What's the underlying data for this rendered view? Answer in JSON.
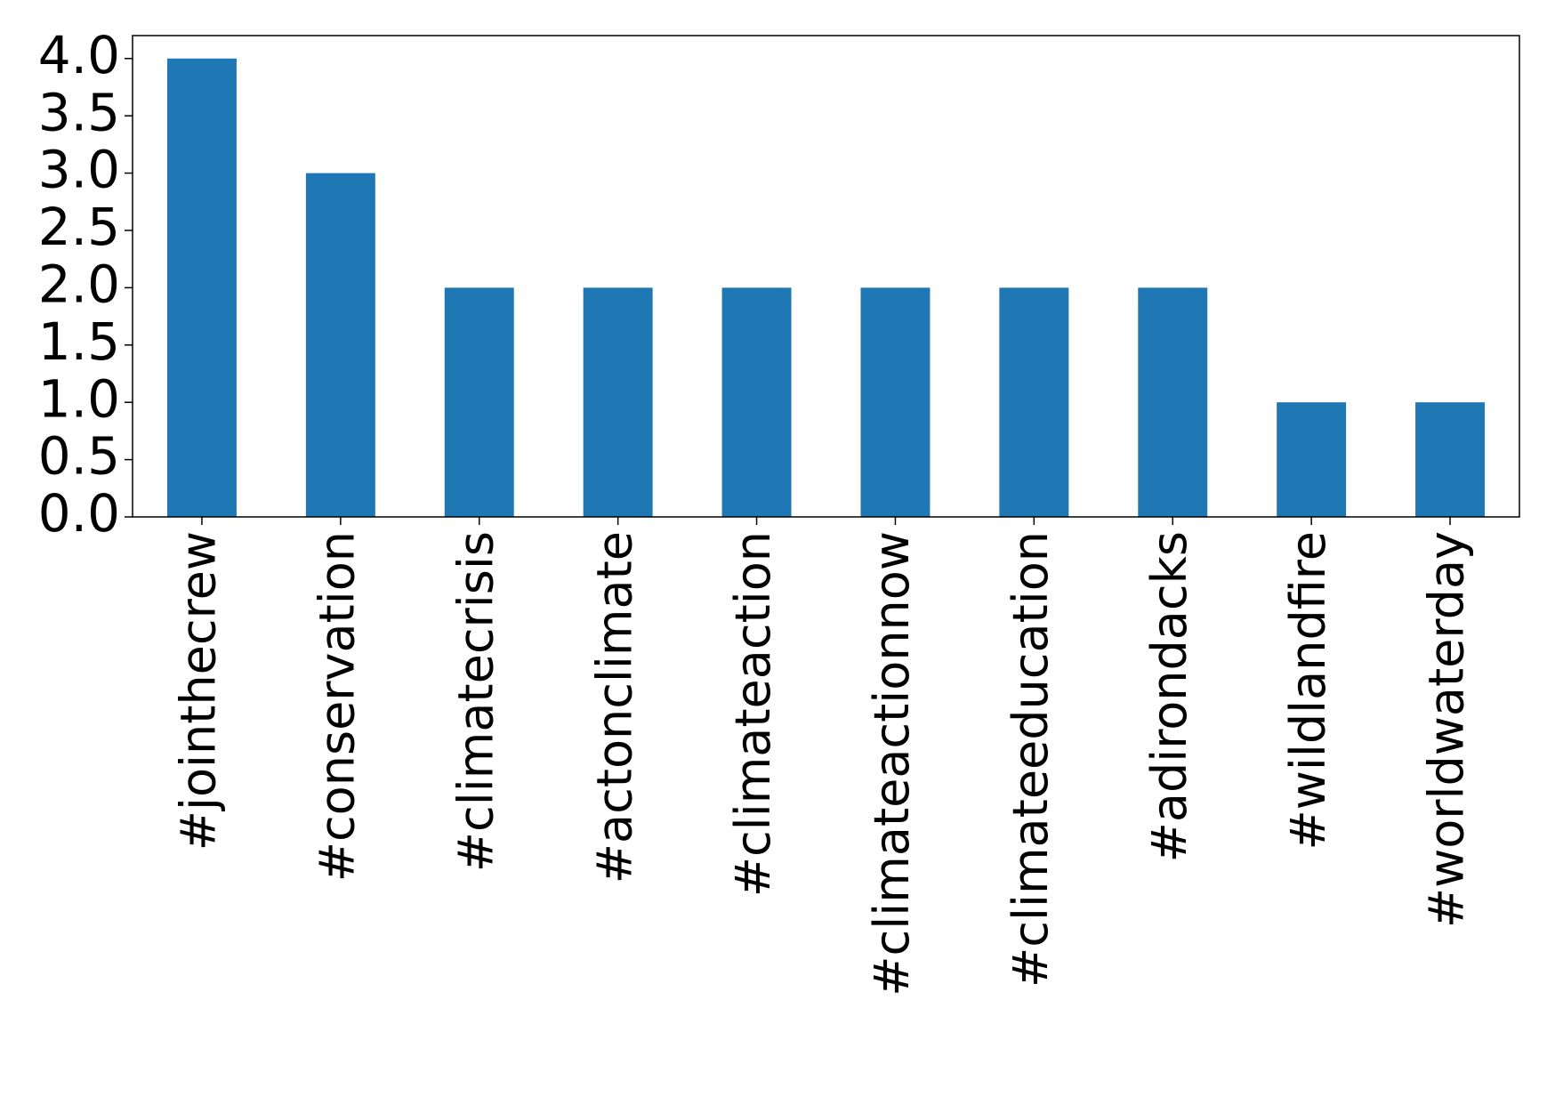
{
  "chart_data": {
    "type": "bar",
    "categories": [
      "#jointhecrew",
      "#conservation",
      "#climatecrisis",
      "#actonclimate",
      "#climateaction",
      "#climateactionnow",
      "#climateeducation",
      "#adirondacks",
      "#wildlandfire",
      "#worldwaterday"
    ],
    "values": [
      4,
      3,
      2,
      2,
      2,
      2,
      2,
      2,
      1,
      1
    ],
    "color": "#1f77b4",
    "ylim": [
      0,
      4.2
    ],
    "yticks": [
      {
        "value": 0,
        "label": "0.0"
      },
      {
        "value": 0.5,
        "label": "0.5"
      },
      {
        "value": 1,
        "label": "1.0"
      },
      {
        "value": 1.5,
        "label": "1.5"
      },
      {
        "value": 2,
        "label": "2.0"
      },
      {
        "value": 2.5,
        "label": "2.5"
      },
      {
        "value": 3,
        "label": "3.0"
      },
      {
        "value": 3.5,
        "label": "3.5"
      },
      {
        "value": 4,
        "label": "4.0"
      }
    ],
    "grid": false
  }
}
